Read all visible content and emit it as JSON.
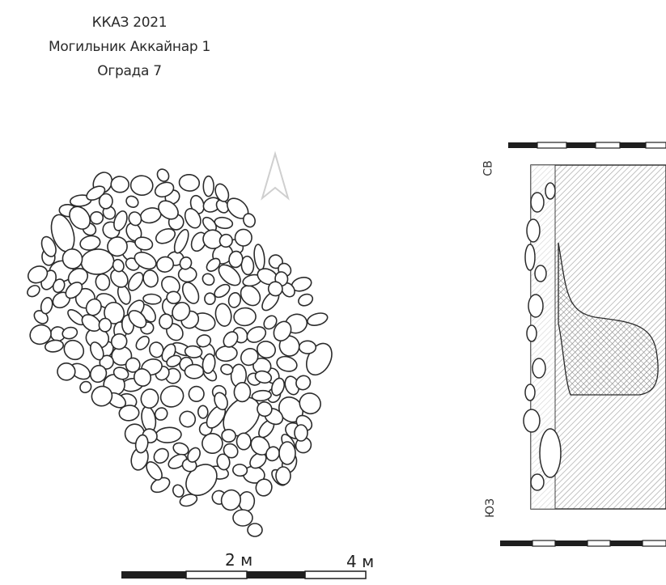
{
  "header": {
    "line1": "ККАЗ 2021",
    "line2": "Могильник Аккайнар 1",
    "line3": "Ограда 7"
  },
  "plan_scale": {
    "label_mid": "2 м",
    "label_end": "4 м"
  },
  "section": {
    "label_top": "СВ",
    "label_bottom": "ЮЗ"
  },
  "colors": {
    "ink": "#2b2b2b",
    "stone_fill": "#ffffff",
    "hatch": "#9a9a9a",
    "north_arrow": "#cfcfcf"
  }
}
